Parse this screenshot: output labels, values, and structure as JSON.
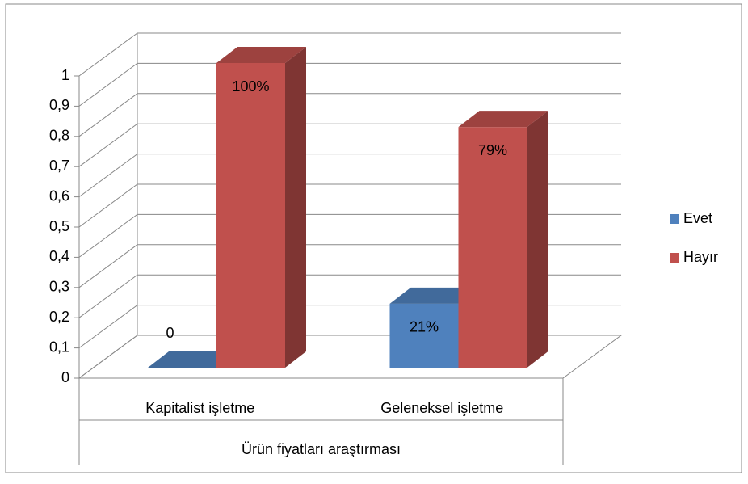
{
  "chart_data": {
    "type": "bar3d",
    "categories": [
      "Kapitalist işletme",
      "Geleneksel işletme"
    ],
    "group_label": "Ürün fiyatları araştırması",
    "series": [
      {
        "name": "Evet",
        "color": "#4f81bd",
        "values": [
          0,
          0.21
        ],
        "value_labels": [
          "0",
          "21%"
        ]
      },
      {
        "name": "Hayır",
        "color": "#c0504d",
        "values": [
          1,
          0.79
        ],
        "value_labels": [
          "100%",
          "79%"
        ]
      }
    ],
    "ylim": [
      0,
      1
    ],
    "yticks": [
      0,
      {
        "value": 0.1,
        "label": "0,1"
      },
      {
        "value": 0.2,
        "label": "0,2"
      },
      {
        "value": 0.3,
        "label": "0,3"
      },
      {
        "value": 0.4,
        "label": "0,4"
      },
      {
        "value": 0.5,
        "label": "0,5"
      },
      {
        "value": 0.6,
        "label": "0,6"
      },
      {
        "value": 0.7,
        "label": "0,7"
      },
      {
        "value": 0.8,
        "label": "0,8"
      },
      {
        "value": 0.9,
        "label": "0,9"
      },
      1
    ],
    "grid": true,
    "legend": "right"
  }
}
